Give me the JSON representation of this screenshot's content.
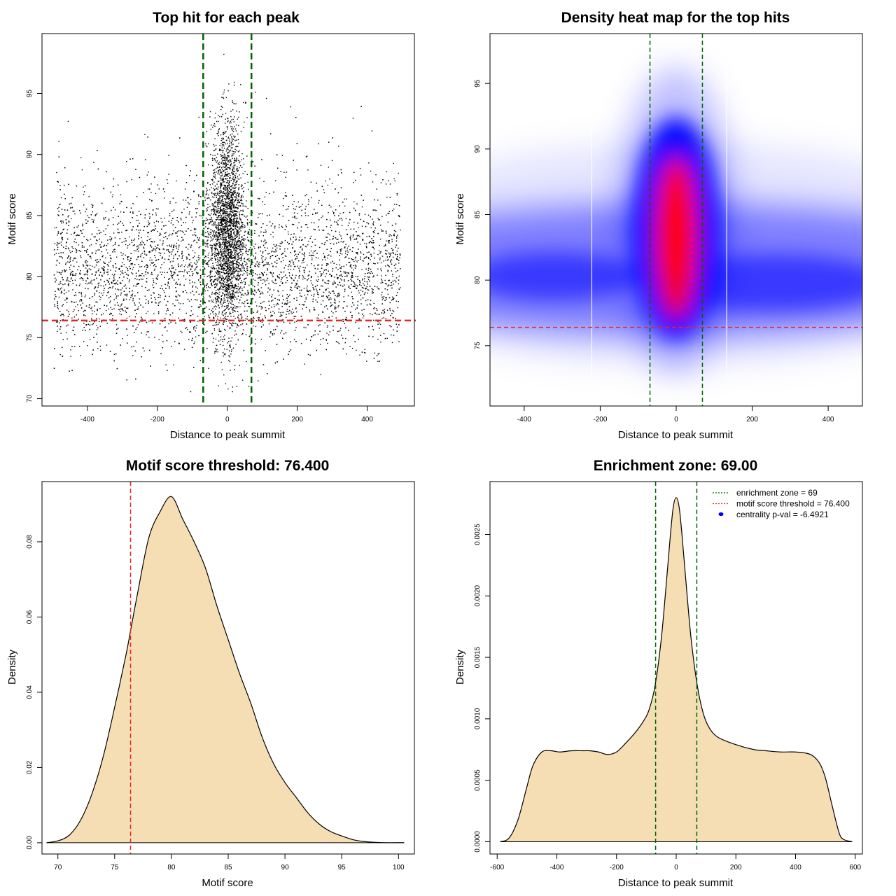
{
  "colors": {
    "points": "#000000",
    "green_line": "#006400",
    "red_line": "#e32626",
    "density_fill": "#f5deb3",
    "heat_low": "#ffffff",
    "heat_mid": "#0000ff",
    "heat_high": "#ff0000"
  },
  "chart_data": [
    {
      "type": "scatter",
      "title": "Top hit for each peak",
      "xlabel": "Distance to peak summit",
      "ylabel": "Motif score",
      "xlim": [
        -530,
        535
      ],
      "ylim": [
        69.4,
        99.9
      ],
      "xticks": [
        -400,
        -200,
        0,
        200,
        400
      ],
      "yticks": [
        70,
        75,
        80,
        85,
        90,
        95
      ],
      "vlines": [
        -69,
        69
      ],
      "hline": 76.4,
      "grid": false,
      "series": [
        {
          "points_note": "approx. 10000 top-hit points: broad background over -495..495 with scores 72-92 (mode ~80), plus a dense central cluster within about +/-60 of the summit with scores 75-98"
        }
      ]
    },
    {
      "type": "heatmap",
      "title": "Density heat map for the top hits",
      "xlabel": "Distance to peak summit",
      "ylabel": "Motif score",
      "xlim": [
        -490,
        490
      ],
      "ylim": [
        70.4,
        98.8
      ],
      "xticks": [
        -400,
        -200,
        0,
        200,
        400
      ],
      "yticks": [
        75,
        80,
        85,
        90,
        95
      ],
      "vlines": [
        -69,
        69
      ],
      "hline": 76.4,
      "grid": false,
      "colorscale": [
        "white",
        "blue",
        "red"
      ]
    },
    {
      "type": "area",
      "title": "Motif score threshold: 76.400",
      "xlabel": "Motif score",
      "ylabel": "Density",
      "xlim": [
        68.6,
        101.4
      ],
      "ylim": [
        -0.003,
        0.096
      ],
      "xticks": [
        70,
        75,
        80,
        85,
        90,
        95,
        100
      ],
      "yticks": [
        0.0,
        0.02,
        0.04,
        0.06,
        0.08
      ],
      "ytick_labels": [
        "0.00",
        "0.02",
        "0.04",
        "0.06",
        "0.08"
      ],
      "vline": 76.4,
      "grid": false,
      "x": [
        69,
        70,
        71,
        72,
        73,
        74,
        75,
        76,
        76.5,
        77,
        78,
        79,
        80,
        81,
        82,
        83,
        84,
        85,
        86,
        87,
        88,
        89,
        90,
        91,
        92,
        93,
        94,
        95,
        96,
        97,
        98,
        99,
        100,
        100.5
      ],
      "y": [
        0.0,
        0.0005,
        0.002,
        0.006,
        0.013,
        0.023,
        0.036,
        0.05,
        0.058,
        0.066,
        0.081,
        0.088,
        0.092,
        0.086,
        0.08,
        0.073,
        0.063,
        0.054,
        0.045,
        0.037,
        0.028,
        0.021,
        0.016,
        0.012,
        0.008,
        0.005,
        0.003,
        0.0018,
        0.0008,
        0.0003,
        0.0001,
        0.0,
        0.0,
        0.0
      ]
    },
    {
      "type": "area",
      "title": "Enrichment zone: 69.00",
      "xlabel": "Distance to peak summit",
      "ylabel": "Density",
      "xlim": [
        -624,
        624
      ],
      "ylim": [
        -0.0001,
        0.00293
      ],
      "xticks": [
        -600,
        -400,
        -200,
        0,
        200,
        400,
        600
      ],
      "yticks": [
        0.0,
        0.0005,
        0.001,
        0.0015,
        0.002,
        0.0025
      ],
      "ytick_labels": [
        "0.0000",
        "0.0005",
        "0.0010",
        "0.0015",
        "0.0020",
        "0.0025"
      ],
      "vlines": [
        -69,
        69
      ],
      "grid": false,
      "legend_position": "top-right",
      "legend": [
        {
          "label": "enrichment zone = 69",
          "kind": "dotted-line",
          "color": "#006400"
        },
        {
          "label": "motif score threshold = 76.400",
          "kind": "dotted-line",
          "color": "#e32626"
        },
        {
          "label": "centrality p-val = -6.4921",
          "kind": "dot",
          "color": "#0000ff"
        }
      ],
      "x": [
        -590,
        -560,
        -530,
        -500,
        -480,
        -450,
        -420,
        -390,
        -350,
        -310,
        -290,
        -260,
        -230,
        -200,
        -170,
        -140,
        -110,
        -90,
        -70,
        -50,
        -35,
        -20,
        -10,
        0,
        10,
        20,
        35,
        50,
        70,
        90,
        110,
        140,
        200,
        260,
        300,
        350,
        400,
        450,
        480,
        500,
        520,
        545,
        560,
        590
      ],
      "y": [
        0.0,
        3e-05,
        0.00018,
        0.00045,
        0.00062,
        0.00073,
        0.00074,
        0.00073,
        0.00074,
        0.00074,
        0.00074,
        0.00073,
        0.00071,
        0.00073,
        0.0008,
        0.00088,
        0.00098,
        0.00108,
        0.00128,
        0.00165,
        0.00205,
        0.00248,
        0.00272,
        0.0028,
        0.00272,
        0.00248,
        0.00205,
        0.00165,
        0.00128,
        0.00105,
        0.00093,
        0.00085,
        0.00079,
        0.00075,
        0.00074,
        0.00073,
        0.00073,
        0.00071,
        0.00064,
        0.00052,
        0.00032,
        8e-05,
        2e-05,
        0.0
      ]
    }
  ]
}
